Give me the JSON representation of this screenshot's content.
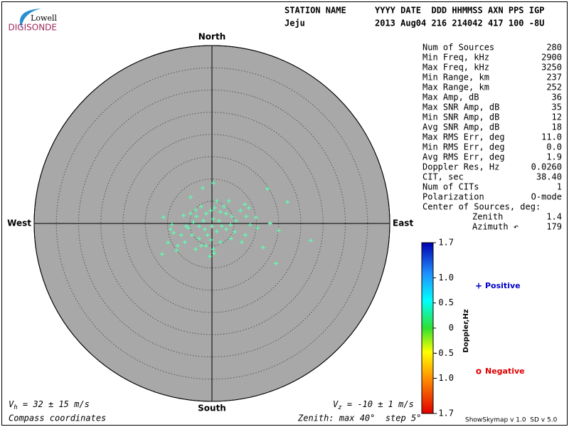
{
  "logo": {
    "line1": "Lowell",
    "line2": "DIGISONDE"
  },
  "header": {
    "label1": "STATION NAME",
    "label2": "YYYY DATE  DDD HHMMSS AXN PPS IGP",
    "station": "Jeju",
    "values": "2013 Aug04 216 214042 417 100 -8U"
  },
  "stats": {
    "rows": [
      [
        "Num of Sources",
        "280"
      ],
      [
        "Min Freq, kHz",
        "2900"
      ],
      [
        "Max Freq, kHz",
        "3250"
      ],
      [
        "Min Range, km",
        "237"
      ],
      [
        "Max Range, km",
        "252"
      ],
      [
        "Max Amp, dB",
        "36"
      ],
      [
        "Max SNR Amp, dB",
        "35"
      ],
      [
        "Min SNR Amp, dB",
        "12"
      ],
      [
        "Avg SNR Amp, dB",
        "18"
      ],
      [
        "Max RMS Err, deg",
        "11.0"
      ],
      [
        "Min RMS Err, deg",
        "0.0"
      ],
      [
        "Avg RMS Err, deg",
        "1.9"
      ],
      [
        "Doppler Res, Hz",
        "0.0260"
      ],
      [
        "CIT, sec",
        "38.40"
      ],
      [
        "Num of CITs",
        "1"
      ],
      [
        "Polarization",
        "O-mode"
      ]
    ],
    "center": {
      "title": "Center of Sources, deg:",
      "rows": [
        [
          "Zenith",
          "1.4"
        ],
        [
          "Azimuth ↶",
          "179"
        ]
      ]
    }
  },
  "chart_data": {
    "type": "scatter",
    "compass": {
      "north": "North",
      "south": "South",
      "east": "East",
      "west": "West"
    },
    "rlim": [
      0,
      40
    ],
    "rticks": [
      5,
      10,
      15,
      20,
      25,
      30,
      35,
      40
    ],
    "color": "#5cffb0",
    "x": [
      -2.1,
      0.3,
      -4.8,
      1.1,
      3.8,
      12.5,
      17.0,
      7.4,
      -10.9,
      -9.3,
      -8.6,
      -6.4,
      -4.8,
      -3.7,
      -2.4,
      -1.3,
      -0.3,
      0.6,
      1.9,
      3.2,
      4.5,
      5.4,
      6.4,
      7.7,
      8.6,
      10.2,
      13.1,
      15.0,
      22.2,
      14.4,
      11.5,
      7.5,
      4.3,
      1.9,
      0.3,
      -0.5,
      -1.3,
      -2.9,
      -4.5,
      -6.1,
      -7.7,
      -8.0,
      -11.2,
      -9.9,
      -5.3,
      -4.2,
      -2.9,
      -1.6,
      -1.0,
      0.0,
      1.1,
      2.2,
      3.2,
      4.2,
      -1.9,
      -3.5,
      -5.8,
      -9.0,
      0.3,
      1.6,
      2.7,
      -0.2,
      -2.4,
      0.5,
      5.1,
      6.7,
      -6.9,
      -3.7,
      8.3,
      9.9
    ],
    "y": [
      8.0,
      9.1,
      5.9,
      5.0,
      5.1,
      7.8,
      4.8,
      4.3,
      1.4,
      -1.3,
      -2.1,
      1.8,
      2.2,
      3.0,
      3.8,
      2.2,
      2.9,
      3.5,
      2.6,
      2.2,
      1.6,
      0.6,
      2.9,
      1.6,
      -0.3,
      -1.0,
      0.0,
      -1.6,
      -3.8,
      -9.0,
      -5.4,
      -2.6,
      -3.4,
      -4.2,
      -5.8,
      -7.4,
      -5.0,
      -3.4,
      -2.6,
      -4.2,
      -5.0,
      -6.1,
      -6.9,
      -4.3,
      -1.0,
      0.3,
      -0.6,
      -1.3,
      -2.6,
      -0.6,
      -1.8,
      -0.6,
      -1.3,
      -0.3,
      0.6,
      1.6,
      -0.6,
      -0.2,
      1.0,
      0.6,
      3.8,
      -3.7,
      -5.0,
      -6.7,
      -1.9,
      -4.2,
      -2.6,
      -5.8,
      3.5,
      1.4
    ],
    "colorbar": {
      "title": "Doppler,Hz",
      "lim": [
        -1.7,
        1.7
      ],
      "ticks": [
        1.7,
        {
          "value": 1,
          "label": "1.0"
        },
        0.5,
        0,
        -0.5,
        {
          "value": -1,
          "label": "-1.0"
        },
        -1.7
      ]
    },
    "legend": [
      {
        "symbol": "+",
        "label": "Positive",
        "color": "#0000c8"
      },
      {
        "symbol": "o",
        "label": "Negative",
        "color": "#e00000"
      }
    ],
    "vh": {
      "symbol": "V",
      "sub": "h",
      "text": " = 32 ± 15 m/s"
    },
    "vz": {
      "symbol": "V",
      "sub": "z",
      "text": " = -10 ± 1 m/s"
    },
    "coords": "Compass coordinates",
    "zenith_note": "Zenith: max 40°  step 5°",
    "version": "ShowSkymap v 1.0  SD v 5.0"
  }
}
